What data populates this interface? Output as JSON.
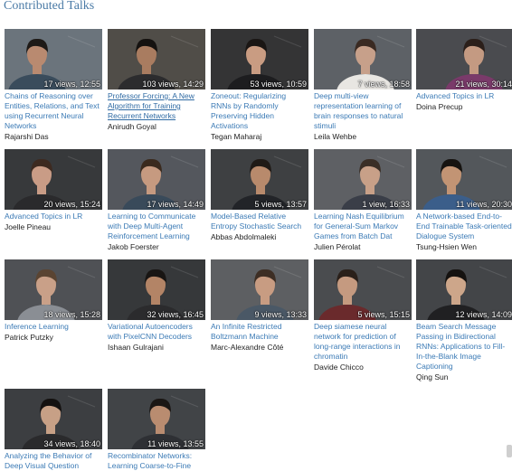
{
  "section_title": "Contributed Talks",
  "talks": [
    {
      "title": "Chains of Reasoning over Entities, Relations, and Text using Recurrent Neural Networks",
      "speaker": "Rajarshi Das",
      "stats": "17 views, 12:55",
      "bg": "#7a858e",
      "skin": "#b98a70",
      "hair": "#1e1a17",
      "shirt": "#3a4c5c"
    },
    {
      "title": "Professor Forcing: A New Algorithm for Training Recurrent Networks",
      "speaker": "Anirudh Goyal",
      "stats": "103 views, 14:29",
      "bg": "#5c5852",
      "skin": "#a97c60",
      "hair": "#151210",
      "shirt": "#2c2c2e",
      "underline": true
    },
    {
      "title": "Zoneout: Regularizing RNNs by Randomly Preserving Hidden Activations",
      "speaker": "Tegan Maharaj",
      "stats": "53 views, 10:59",
      "bg": "#3c3c3d",
      "skin": "#c99c82",
      "hair": "#1a1614",
      "shirt": "#1d1d1f"
    },
    {
      "title": "Deep multi-view representation learning of brain responses to natural stimuli",
      "speaker": "Leila Wehbe",
      "stats": "7 views, 18:58",
      "bg": "#6a6f75",
      "skin": "#c7a08a",
      "hair": "#3a2a22",
      "shirt": "#e8e6e2"
    },
    {
      "title": "Advanced Topics in LR",
      "speaker": "Doina Precup",
      "stats": "21 views, 30:14",
      "bg": "#55565a",
      "skin": "#c49a82",
      "hair": "#2b1f1a",
      "shirt": "#7a3a6a"
    },
    {
      "title": "Advanced Topics in LR",
      "speaker": "Joelle Pineau",
      "stats": "20 views, 15:24",
      "bg": "#3f4144",
      "skin": "#c99c86",
      "hair": "#3d2a20",
      "shirt": "#2a2a2c"
    },
    {
      "title": "Learning to Communicate with Deep Multi-Agent Reinforcement Learning",
      "speaker": "Jakob Foerster",
      "stats": "17 views, 14:49",
      "bg": "#60636a",
      "skin": "#c69a80",
      "hair": "#3a2a1e",
      "shirt": "#394a5a"
    },
    {
      "title": "Model-Based Relative Entropy Stochastic Search",
      "speaker": "Abbas Abdolmaleki",
      "stats": "5 views, 13:57",
      "bg": "#47494c",
      "skin": "#b88a6c",
      "hair": "#1f1a16",
      "shirt": "#222428"
    },
    {
      "title": "Learning Nash Equilibrium for General-Sum Markov Games from Batch Dat",
      "speaker": "Julien Pérolat",
      "stats": "1 view, 16:33",
      "bg": "#6b6e72",
      "skin": "#c8a088",
      "hair": "#3a2e26",
      "shirt": "#3a3e48"
    },
    {
      "title": "A Network-based End-to-End Trainable Task-oriented Dialogue System",
      "speaker": "Tsung-Hsien Wen",
      "stats": "11 views, 20:30",
      "bg": "#5f6468",
      "skin": "#c29474",
      "hair": "#161310",
      "shirt": "#3b5e8a"
    },
    {
      "title": "Inference Learning",
      "speaker": "Patrick Putzky",
      "stats": "18 views, 15:28",
      "bg": "#5a5d61",
      "skin": "#c9a088",
      "hair": "#5a4432",
      "shirt": "#8a8e94"
    },
    {
      "title": "Variational Autoencoders with PixelCNN Decoders",
      "speaker": "Ishaan Gulrajani",
      "stats": "32 views, 16:45",
      "bg": "#3e4043",
      "skin": "#b38466",
      "hair": "#181513",
      "shirt": "#2b2b2d"
    },
    {
      "title": "An Infinite Restricted Boltzmann Machine",
      "speaker": "Marc-Alexandre Côté",
      "stats": "9 views, 13:33",
      "bg": "#6a6d70",
      "skin": "#c89c82",
      "hair": "#3d2e24",
      "shirt": "#4a5866"
    },
    {
      "title": "Deep siamese neural network for prediction of long-range interactions in chromatin",
      "speaker": "Davide Chicco",
      "stats": "5 views, 15:15",
      "bg": "#55575a",
      "skin": "#c59a80",
      "hair": "#2a201a",
      "shirt": "#6a2a2c"
    },
    {
      "title": "Beam Search Message Passing in Bidirectional RNNs: Applications to Fill-In-the-Blank Image Captioning",
      "speaker": "Qing Sun",
      "stats": "12 views, 14:09",
      "bg": "#4d4f52",
      "skin": "#cda68a",
      "hair": "#151210",
      "shirt": "#202022"
    },
    {
      "title": "Analyzing the Behavior of Deep Visual Question",
      "speaker": "",
      "stats": "34 views, 18:40",
      "bg": "#45474a",
      "skin": "#c7a086",
      "hair": "#141110",
      "shirt": "#2a2a2c"
    },
    {
      "title": "Recombinator Networks: Learning Coarse-to-Fine",
      "speaker": "",
      "stats": "11 views, 13:55",
      "bg": "#4b4e51",
      "skin": "#b98c70",
      "hair": "#1a1614",
      "shirt": "#2e3034"
    }
  ]
}
